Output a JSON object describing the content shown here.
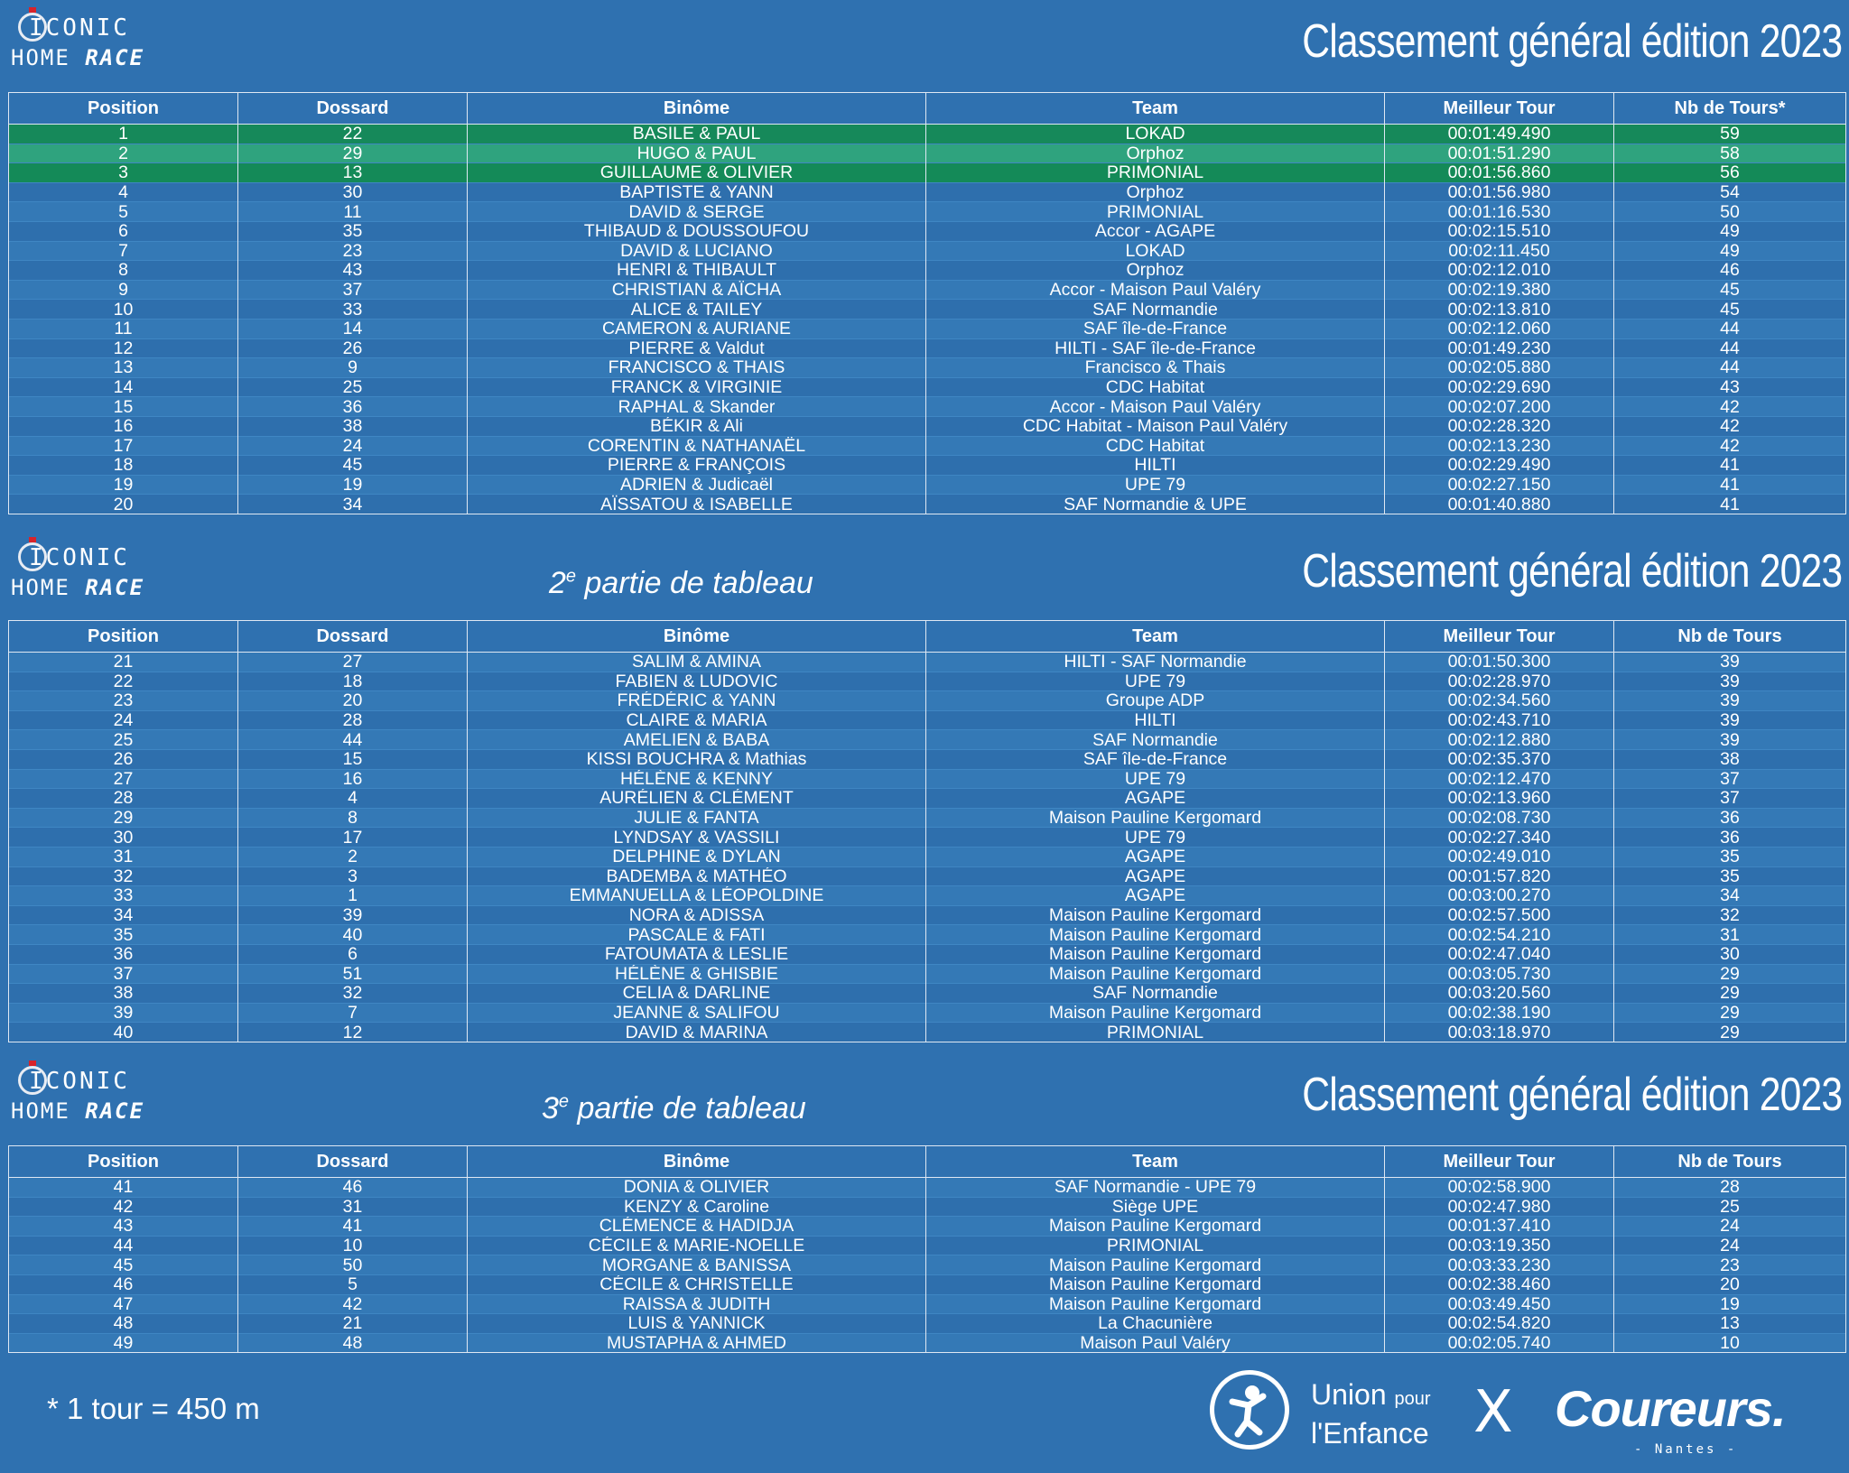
{
  "header": {
    "title": "Classement général édition 2023",
    "logo_top": "ICONIC",
    "logo_home": "HOME",
    "logo_race": "RACE"
  },
  "parts": {
    "part2": {
      "num": "2",
      "sup": "e",
      "text": " partie de tableau"
    },
    "part3": {
      "num": "3",
      "sup": "e",
      "text": " partie de tableau"
    }
  },
  "columns": [
    "Position",
    "Dossard",
    "Binôme",
    "Team",
    "Meilleur Tour",
    "Nb de Tours*"
  ],
  "columns_plain": [
    "Position",
    "Dossard",
    "Binôme",
    "Team",
    "Meilleur Tour",
    "Nb de Tours"
  ],
  "podium_colors": [
    "#16895a",
    "#2fa37e",
    "#148a58"
  ],
  "table1": [
    [
      "1",
      "22",
      "BASILE & PAUL",
      "LOKAD",
      "00:01:49.490",
      "59"
    ],
    [
      "2",
      "29",
      "HUGO & PAUL",
      "Orphoz",
      "00:01:51.290",
      "58"
    ],
    [
      "3",
      "13",
      "GUILLAUME & OLIVIER",
      "PRIMONIAL",
      "00:01:56.860",
      "56"
    ],
    [
      "4",
      "30",
      "BAPTISTE & YANN",
      "Orphoz",
      "00:01:56.980",
      "54"
    ],
    [
      "5",
      "11",
      "DAVID & SERGE",
      "PRIMONIAL",
      "00:01:16.530",
      "50"
    ],
    [
      "6",
      "35",
      "THIBAUD & DOUSSOUFOU",
      "Accor - AGAPE",
      "00:02:15.510",
      "49"
    ],
    [
      "7",
      "23",
      "DAVID & LUCIANO",
      "LOKAD",
      "00:02:11.450",
      "49"
    ],
    [
      "8",
      "43",
      "HENRI & THIBAULT",
      "Orphoz",
      "00:02:12.010",
      "46"
    ],
    [
      "9",
      "37",
      "CHRISTIAN & AÏCHA",
      "Accor - Maison Paul Valéry",
      "00:02:19.380",
      "45"
    ],
    [
      "10",
      "33",
      "ALICE & TAILEY",
      "SAF Normandie",
      "00:02:13.810",
      "45"
    ],
    [
      "11",
      "14",
      "CAMERON & AURIANE",
      "SAF île-de-France",
      "00:02:12.060",
      "44"
    ],
    [
      "12",
      "26",
      "PIERRE & Valdut",
      "HILTI - SAF île-de-France",
      "00:01:49.230",
      "44"
    ],
    [
      "13",
      "9",
      "FRANCISCO & THAIS",
      "Francisco & Thais",
      "00:02:05.880",
      "44"
    ],
    [
      "14",
      "25",
      "FRANCK & VIRGINIE",
      "CDC Habitat",
      "00:02:29.690",
      "43"
    ],
    [
      "15",
      "36",
      "RAPHAL & Skander",
      "Accor - Maison Paul Valéry",
      "00:02:07.200",
      "42"
    ],
    [
      "16",
      "38",
      "BÉKIR & Ali",
      "CDC Habitat - Maison Paul Valéry",
      "00:02:28.320",
      "42"
    ],
    [
      "17",
      "24",
      "CORENTIN & NATHANAËL",
      "CDC Habitat",
      "00:02:13.230",
      "42"
    ],
    [
      "18",
      "45",
      "PIERRE & FRANÇOIS",
      "HILTI",
      "00:02:29.490",
      "41"
    ],
    [
      "19",
      "19",
      "ADRIEN & Judicaël",
      "UPE 79",
      "00:02:27.150",
      "41"
    ],
    [
      "20",
      "34",
      "AÏSSATOU & ISABELLE",
      "SAF Normandie & UPE",
      "00:01:40.880",
      "41"
    ]
  ],
  "table2": [
    [
      "21",
      "27",
      "SALIM & AMINA",
      "HILTI - SAF Normandie",
      "00:01:50.300",
      "39"
    ],
    [
      "22",
      "18",
      "FABIEN & LUDOVIC",
      "UPE 79",
      "00:02:28.970",
      "39"
    ],
    [
      "23",
      "20",
      "FRÉDÉRIC & YANN",
      "Groupe ADP",
      "00:02:34.560",
      "39"
    ],
    [
      "24",
      "28",
      "CLAIRE & MARIA",
      "HILTI",
      "00:02:43.710",
      "39"
    ],
    [
      "25",
      "44",
      "AMELIEN & BABA",
      "SAF Normandie",
      "00:02:12.880",
      "39"
    ],
    [
      "26",
      "15",
      "KISSI BOUCHRA & Mathias",
      "SAF île-de-France",
      "00:02:35.370",
      "38"
    ],
    [
      "27",
      "16",
      "HÉLÈNE & KENNY",
      "UPE 79",
      "00:02:12.470",
      "37"
    ],
    [
      "28",
      "4",
      "AURÉLIEN & CLÉMENT",
      "AGAPE",
      "00:02:13.960",
      "37"
    ],
    [
      "29",
      "8",
      "JULIE & FANTA",
      "Maison Pauline Kergomard",
      "00:02:08.730",
      "36"
    ],
    [
      "30",
      "17",
      "LYNDSAY & VASSILI",
      "UPE 79",
      "00:02:27.340",
      "36"
    ],
    [
      "31",
      "2",
      "DELPHINE & DYLAN",
      "AGAPE",
      "00:02:49.010",
      "35"
    ],
    [
      "32",
      "3",
      "BADEMBA & MATHÉO",
      "AGAPE",
      "00:01:57.820",
      "35"
    ],
    [
      "33",
      "1",
      "EMMANUELLA & LÉOPOLDINE",
      "AGAPE",
      "00:03:00.270",
      "34"
    ],
    [
      "34",
      "39",
      "NORA & ADISSA",
      "Maison Pauline Kergomard",
      "00:02:57.500",
      "32"
    ],
    [
      "35",
      "40",
      "PASCALE & FATI",
      "Maison Pauline Kergomard",
      "00:02:54.210",
      "31"
    ],
    [
      "36",
      "6",
      "FATOUMATA & LESLIE",
      "Maison Pauline Kergomard",
      "00:02:47.040",
      "30"
    ],
    [
      "37",
      "51",
      "HÉLÈNE & GHISBIE",
      "Maison Pauline Kergomard",
      "00:03:05.730",
      "29"
    ],
    [
      "38",
      "32",
      "CELIA & DARLINE",
      "SAF Normandie",
      "00:03:20.560",
      "29"
    ],
    [
      "39",
      "7",
      "JEANNE & SALIFOU",
      "Maison Pauline Kergomard",
      "00:02:38.190",
      "29"
    ],
    [
      "40",
      "12",
      "DAVID & MARINA",
      "PRIMONIAL",
      "00:03:18.970",
      "29"
    ]
  ],
  "table3": [
    [
      "41",
      "46",
      "DONIA & OLIVIER",
      "SAF Normandie - UPE 79",
      "00:02:58.900",
      "28"
    ],
    [
      "42",
      "31",
      "KENZY & Caroline",
      "Siège UPE",
      "00:02:47.980",
      "25"
    ],
    [
      "43",
      "41",
      "CLÉMENCE & HADIDJA",
      "Maison Pauline Kergomard",
      "00:01:37.410",
      "24"
    ],
    [
      "44",
      "10",
      "CÉCILE & MARIE-NOELLE",
      "PRIMONIAL",
      "00:03:19.350",
      "24"
    ],
    [
      "45",
      "50",
      "MORGANE & BANISSA",
      "Maison Pauline Kergomard",
      "00:03:33.230",
      "23"
    ],
    [
      "46",
      "5",
      "CÉCILE & CHRISTELLE",
      "Maison Pauline Kergomard",
      "00:02:38.460",
      "20"
    ],
    [
      "47",
      "42",
      "RAISSA & JUDITH",
      "Maison Pauline Kergomard",
      "00:03:49.450",
      "19"
    ],
    [
      "48",
      "21",
      "LUIS & YANNICK",
      "La Chacunière",
      "00:02:54.820",
      "13"
    ],
    [
      "49",
      "48",
      "MUSTAPHA & AHMED",
      "Maison Paul Valéry",
      "00:02:05.740",
      "10"
    ]
  ],
  "footer": {
    "footnote": "* 1 tour = 450 m",
    "upe_line1": "Union",
    "upe_pour": "pour",
    "upe_line2": "l'Enfance",
    "x": "X",
    "coureurs": "Coureurs.",
    "nantes": "- Nantes -"
  }
}
